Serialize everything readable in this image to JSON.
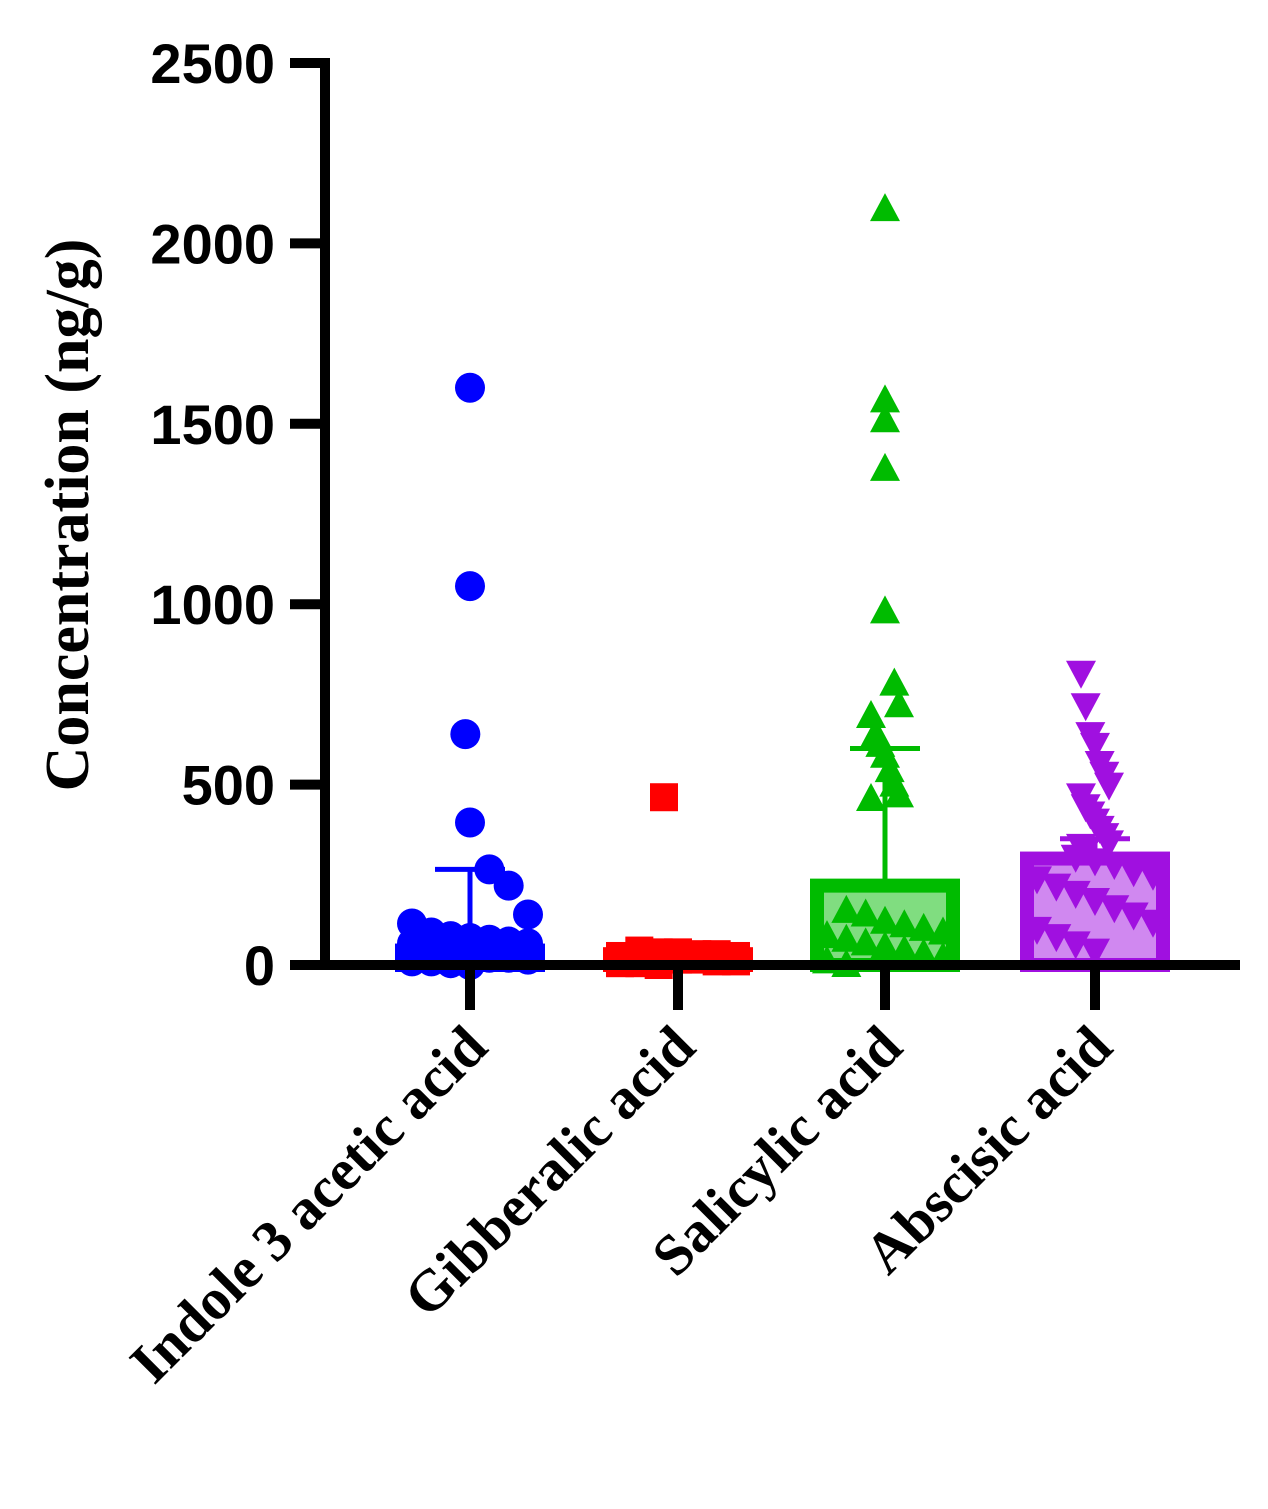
{
  "chart_data": {
    "type": "bar",
    "title": "",
    "xlabel": "",
    "ylabel": "Concentration (ng/g)",
    "ylim": [
      0,
      2500
    ],
    "yticks": [
      0,
      500,
      1000,
      1500,
      2000,
      2500
    ],
    "grid": false,
    "legend": "none",
    "categories": [
      "Indole 3 acetic acid",
      "Gibberalic acid",
      "Salicylic acid",
      "Abscisic acid"
    ],
    "series": [
      {
        "name": "Indole 3 acetic acid",
        "color": "#0000ff",
        "marker": "circle",
        "mean": 40,
        "error_upper": 265,
        "points": [
          1600,
          1050,
          640,
          395,
          265,
          220,
          140,
          115,
          90,
          80,
          75,
          70,
          65,
          60,
          55,
          50,
          45,
          40,
          35,
          30,
          25,
          20,
          15,
          10,
          5,
          0,
          30,
          20,
          10,
          60,
          45,
          25
        ]
      },
      {
        "name": "Gibberalic acid",
        "color": "#ff0000",
        "marker": "square",
        "mean": 30,
        "error_upper": 40,
        "points": [
          465,
          40,
          35,
          30,
          25,
          20,
          15,
          10,
          5,
          0,
          35,
          25,
          15,
          5,
          30,
          20,
          10
        ]
      },
      {
        "name": "Salicylic acid",
        "color": "#00bb00",
        "marker": "triangle-up",
        "mean": 220,
        "error_upper": 600,
        "points": [
          2095,
          1565,
          1510,
          1375,
          980,
          780,
          720,
          690,
          640,
          610,
          580,
          540,
          500,
          470,
          460,
          150,
          140,
          120,
          110,
          100,
          90,
          80,
          70,
          60,
          50,
          40,
          30,
          20,
          10,
          0
        ]
      },
      {
        "name": "Abscisic acid",
        "color": "#a010e0",
        "marker": "triangle-down",
        "mean": 295,
        "error_upper": 350,
        "points": [
          810,
          720,
          640,
          610,
          560,
          530,
          500,
          470,
          440,
          420,
          400,
          380,
          360,
          340,
          330,
          320,
          300,
          290,
          280,
          260,
          250,
          240,
          220,
          200,
          180,
          160,
          140,
          120,
          100,
          80,
          60,
          40
        ]
      }
    ]
  }
}
